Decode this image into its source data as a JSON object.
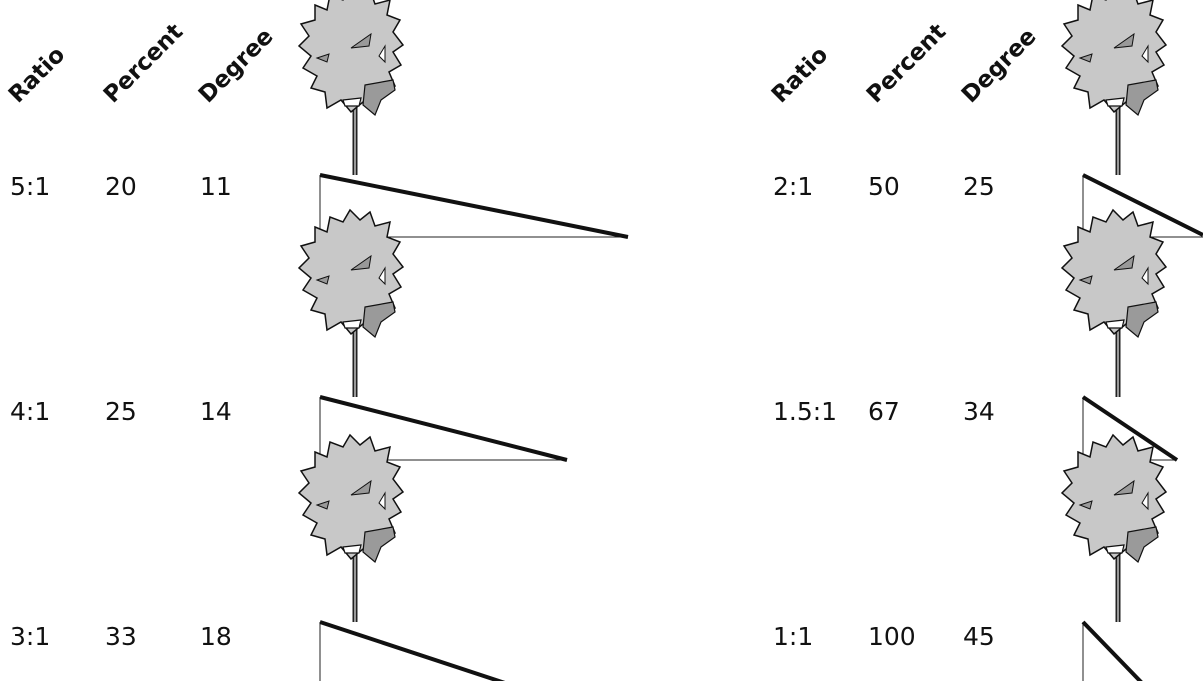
{
  "panels": [
    {
      "headers": [
        "Ratio",
        "Percent",
        "Degree"
      ],
      "rows": [
        [
          "5:1",
          "20",
          "11"
        ],
        [
          "4:1",
          "25",
          "14"
        ],
        [
          "3:1",
          "33",
          "18"
        ]
      ]
    },
    {
      "headers": [
        "Ratio",
        "Percent",
        "Degree"
      ],
      "rows": [
        [
          "2:1",
          "50",
          "25"
        ],
        [
          "1.5:1",
          "67",
          "34"
        ],
        [
          "1:1",
          "100",
          "45"
        ]
      ]
    }
  ]
}
